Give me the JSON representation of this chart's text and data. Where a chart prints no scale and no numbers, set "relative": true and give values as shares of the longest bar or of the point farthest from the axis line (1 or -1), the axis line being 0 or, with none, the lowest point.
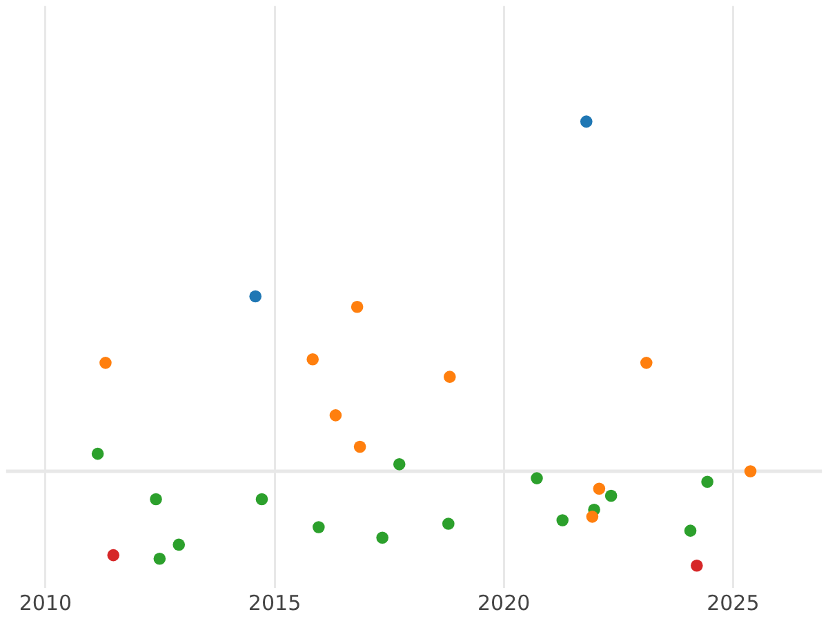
{
  "chart_data": {
    "type": "scatter",
    "relative": true,
    "marker": "circle",
    "grid": "x",
    "legend": false,
    "xlim": [
      2009.14,
      2026.94
    ],
    "xticks": [
      2010,
      2015,
      2020,
      2025
    ],
    "series": [
      {
        "color": "#1f77b4",
        "x": [
          2021.8,
          2014.58
        ],
        "values": [
          1,
          0.5
        ]
      },
      {
        "color": "#ff7f0e",
        "x": [
          2016.8,
          2011.31,
          2015.83,
          2016.33,
          2016.86,
          2018.82,
          2023.11,
          2022.08,
          2021.93,
          2025.38
        ],
        "values": [
          0.47,
          0.31,
          0.32,
          0.16,
          0.07,
          0.27,
          0.31,
          -0.05,
          -0.13,
          0
        ]
      },
      {
        "color": "#2ca02c",
        "x": [
          2011.14,
          2012.41,
          2012.49,
          2012.91,
          2014.72,
          2015.96,
          2017.35,
          2017.72,
          2018.79,
          2020.72,
          2021.28,
          2021.97,
          2022.34,
          2024.07,
          2024.44
        ],
        "values": [
          0.05,
          -0.08,
          -0.25,
          -0.21,
          -0.08,
          -0.16,
          -0.19,
          0.02,
          -0.15,
          -0.02,
          -0.14,
          -0.11,
          -0.07,
          -0.17,
          -0.03
        ]
      },
      {
        "color": "#d62728",
        "x": [
          2011.48,
          2024.21
        ],
        "values": [
          -0.24,
          -0.27
        ]
      }
    ]
  }
}
